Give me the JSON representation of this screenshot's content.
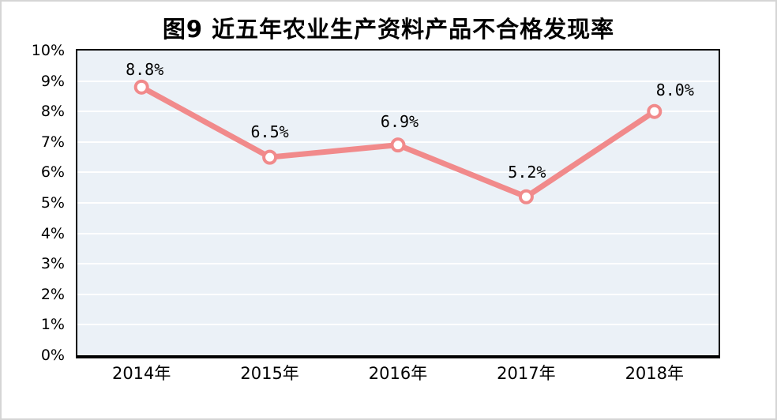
{
  "chart_data": {
    "type": "line",
    "title": "图9 近五年农业生产资料产品不合格发现率",
    "categories": [
      "2014年",
      "2015年",
      "2016年",
      "2017年",
      "2018年"
    ],
    "values": [
      8.8,
      6.5,
      6.9,
      5.2,
      8.0
    ],
    "data_labels": [
      "8.8%",
      "6.5%",
      "6.9%",
      "5.2%",
      "8.0%"
    ],
    "xlabel": "",
    "ylabel": "",
    "ylim": [
      0,
      10
    ],
    "y_tick_labels": [
      "0%",
      "1%",
      "2%",
      "3%",
      "4%",
      "5%",
      "6%",
      "7%",
      "8%",
      "9%",
      "10%"
    ],
    "grid": "horizontal",
    "legend": "none",
    "colors": {
      "line": "#F18A8B",
      "marker_fill": "#FFFFFF",
      "marker_stroke": "#F18A8B",
      "plot_background": "#EBF1F7",
      "gridline": "#FFFFFF",
      "axis_border": "#000000",
      "text": "#000000",
      "page_border": "#D5D5D5"
    }
  }
}
